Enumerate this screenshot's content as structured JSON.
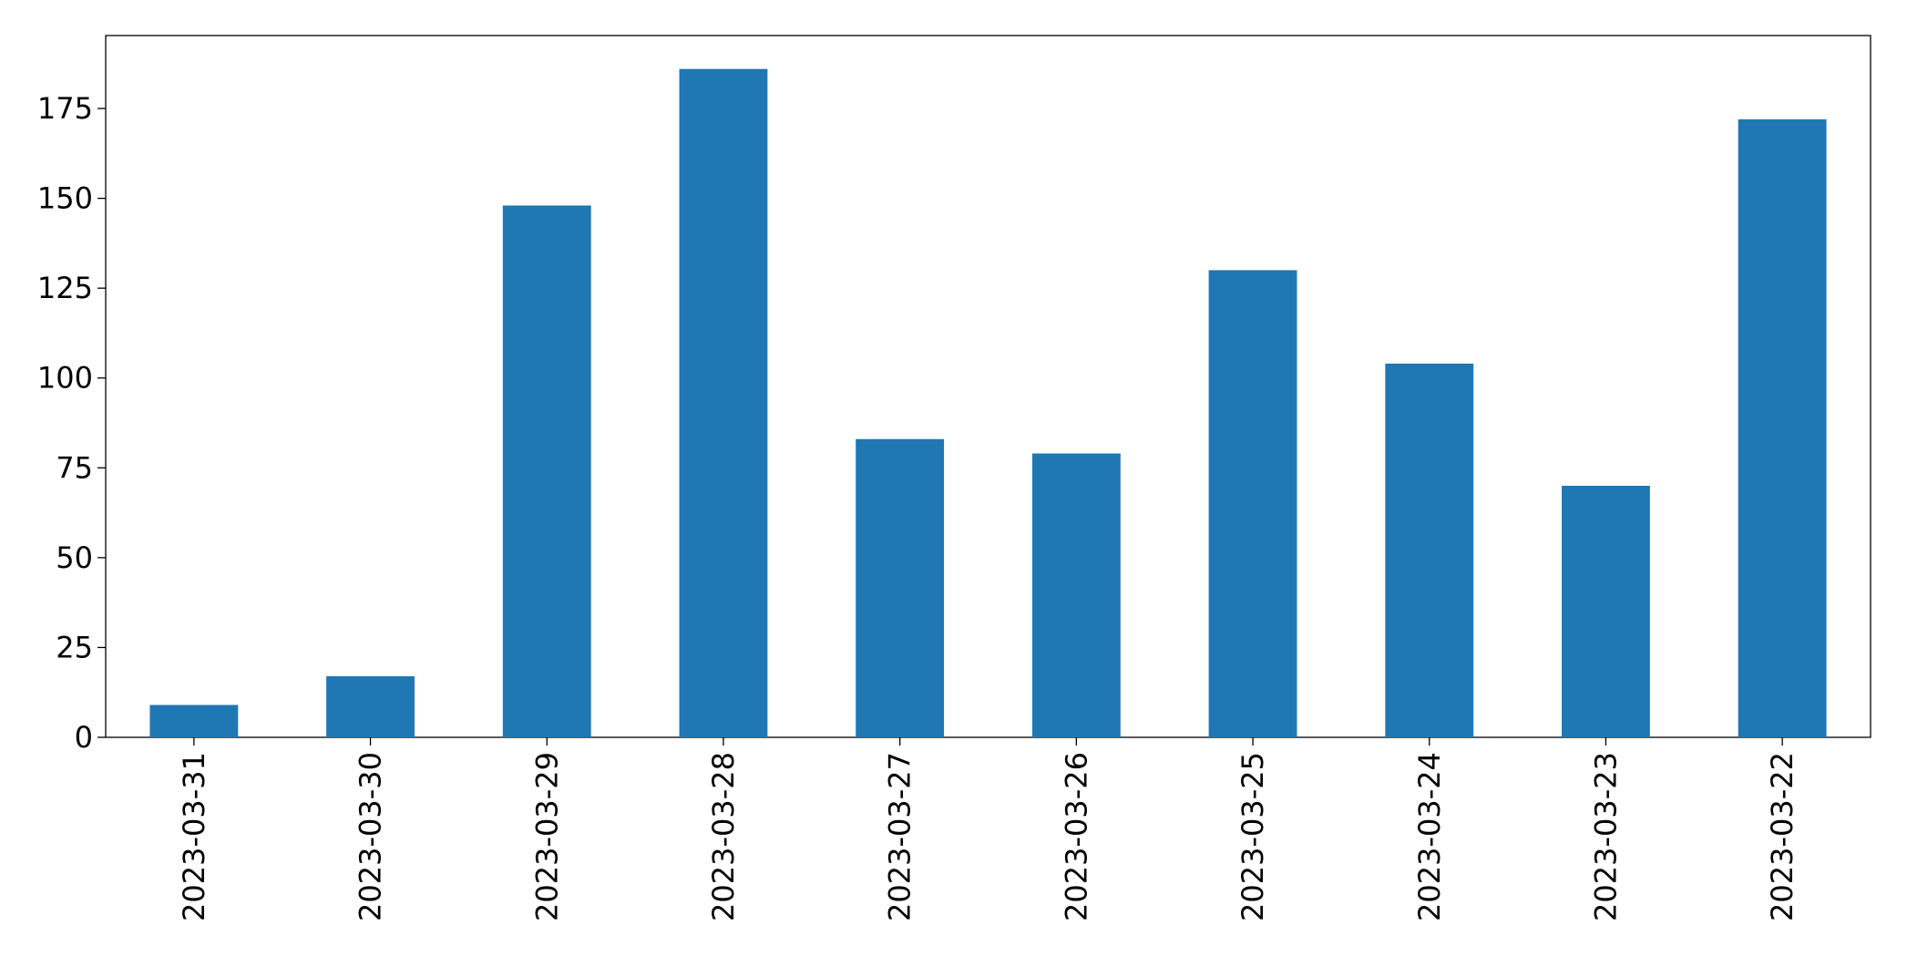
{
  "chart_data": {
    "type": "bar",
    "categories": [
      "2023-03-31",
      "2023-03-30",
      "2023-03-29",
      "2023-03-28",
      "2023-03-27",
      "2023-03-26",
      "2023-03-25",
      "2023-03-24",
      "2023-03-23",
      "2023-03-22"
    ],
    "values": [
      9,
      17,
      148,
      186,
      83,
      79,
      130,
      104,
      70,
      172
    ],
    "color": "#1f77b4",
    "ylim": [
      0,
      195.3
    ],
    "yticks": [
      0,
      25,
      50,
      75,
      100,
      125,
      150,
      175
    ],
    "grid": false
  }
}
